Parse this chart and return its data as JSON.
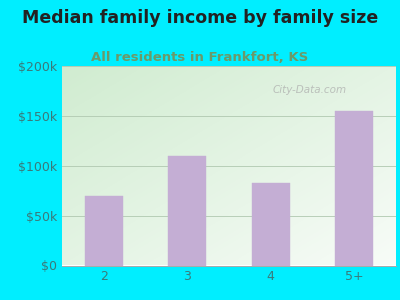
{
  "title": "Median family income by family size",
  "subtitle": "All residents in Frankfort, KS",
  "categories": [
    "2",
    "3",
    "4",
    "5+"
  ],
  "values": [
    70000,
    110000,
    83000,
    155000
  ],
  "bar_color": "#c4aed4",
  "bar_edge_color": "#b89ec6",
  "ylim": [
    0,
    200000
  ],
  "yticks": [
    0,
    50000,
    100000,
    150000,
    200000
  ],
  "ytick_labels": [
    "$0",
    "$50k",
    "$100k",
    "$150k",
    "$200k"
  ],
  "title_fontsize": 12.5,
  "subtitle_fontsize": 9.5,
  "tick_fontsize": 9,
  "title_color": "#222222",
  "subtitle_color": "#6a9a6a",
  "tick_color": "#3a7a7a",
  "bg_outer": "#00eeff",
  "bg_plot_topleft": "#d0ecd0",
  "bg_plot_bottomright": "#f0f8f8",
  "grid_color": "#b0c8b0",
  "watermark": "City-Data.com"
}
